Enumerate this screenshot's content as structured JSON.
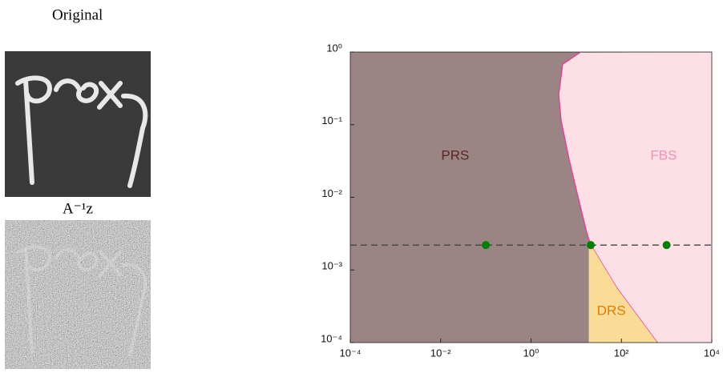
{
  "panels": {
    "original_label": "Original",
    "noisy_label": "A⁻¹z"
  },
  "chart_data": {
    "type": "region",
    "log_x": true,
    "log_y": true,
    "xlim": [
      0.0001,
      10000
    ],
    "ylim": [
      0.0001,
      1
    ],
    "xticks": [
      {
        "value": 0.0001,
        "label": "10⁻⁴"
      },
      {
        "value": 0.01,
        "label": "10⁻²"
      },
      {
        "value": 1,
        "label": "10⁰"
      },
      {
        "value": 100,
        "label": "10²"
      },
      {
        "value": 10000,
        "label": "10⁴"
      }
    ],
    "yticks": [
      {
        "value": 0.0001,
        "label": "10⁻⁴"
      },
      {
        "value": 0.001,
        "label": "10⁻³"
      },
      {
        "value": 0.01,
        "label": "10⁻²"
      },
      {
        "value": 0.1,
        "label": "10⁻¹"
      },
      {
        "value": 1,
        "label": "10⁰"
      }
    ],
    "regions": [
      {
        "name": "PRS",
        "color": "#9b8584",
        "label_color": "#5a2626",
        "label_x": 0.021,
        "label_y": 0.037,
        "x": [
          0.0001,
          10000,
          10000,
          0.0001
        ],
        "y": [
          0.0001,
          0.0001,
          1,
          1
        ]
      },
      {
        "name": "FBS",
        "color": "#fde0e6",
        "edge_color": "#e8409a",
        "label_color": "#f490b8",
        "label_x": 860,
        "label_y": 0.037,
        "x": [
          10000,
          12,
          5,
          4.1,
          4.6,
          7,
          11.4,
          17,
          21,
          80,
          620,
          10000
        ],
        "y": [
          1,
          0.98,
          0.68,
          0.26,
          0.116,
          0.0325,
          0.0091,
          0.0033,
          0.0022,
          0.00056,
          0.0001,
          0.0001
        ]
      },
      {
        "name": "DRS",
        "color": "#fbdc97",
        "label_color": "#e07d00",
        "label_x": 60,
        "label_y": 0.00027,
        "x": [
          19,
          21,
          80,
          620,
          19
        ],
        "y": [
          0.0022,
          0.0022,
          0.00056,
          0.0001,
          0.0001
        ]
      }
    ],
    "hline": 0.0022,
    "points": {
      "color": "#007f00",
      "x": [
        0.1,
        21,
        1000
      ],
      "y": [
        0.0022,
        0.0022,
        0.0022
      ]
    }
  }
}
